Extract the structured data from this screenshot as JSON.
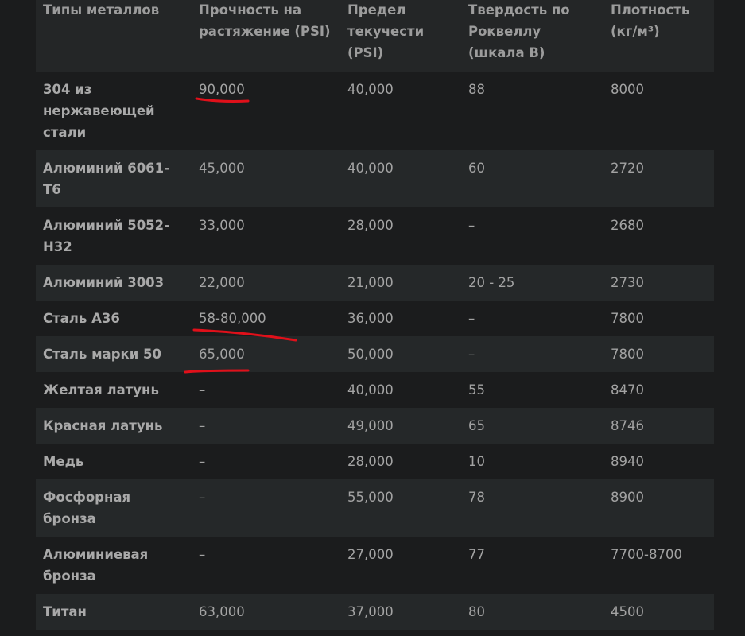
{
  "table": {
    "headers": [
      "Типы металлов",
      "Прочность на растяжение (PSI)",
      "Предел текучести (PSI)",
      "Твердость по Роквеллу (шкала B)",
      "Плотность (кг/м³)"
    ],
    "rows": [
      {
        "metal": "304 из нержавеющей стали",
        "tensile": "90,000",
        "yield": "40,000",
        "rockwell": "88",
        "density": "8000"
      },
      {
        "metal": "Алюминий 6061-T6",
        "tensile": "45,000",
        "yield": "40,000",
        "rockwell": "60",
        "density": "2720"
      },
      {
        "metal": "Алюминий 5052-H32",
        "tensile": "33,000",
        "yield": "28,000",
        "rockwell": "–",
        "density": "2680"
      },
      {
        "metal": "Алюминий 3003",
        "tensile": "22,000",
        "yield": "21,000",
        "rockwell": "20 - 25",
        "density": "2730"
      },
      {
        "metal": "Сталь A36",
        "tensile": "58-80,000",
        "yield": "36,000",
        "rockwell": "–",
        "density": "7800"
      },
      {
        "metal": "Сталь марки 50",
        "tensile": "65,000",
        "yield": "50,000",
        "rockwell": "–",
        "density": "7800"
      },
      {
        "metal": "Желтая латунь",
        "tensile": "–",
        "yield": "40,000",
        "rockwell": "55",
        "density": "8470"
      },
      {
        "metal": "Красная латунь",
        "tensile": "–",
        "yield": "49,000",
        "rockwell": "65",
        "density": "8746"
      },
      {
        "metal": "Медь",
        "tensile": "–",
        "yield": "28,000",
        "rockwell": "10",
        "density": "8940"
      },
      {
        "metal": "Фосфорная бронза",
        "tensile": "–",
        "yield": "55,000",
        "rockwell": "78",
        "density": "8900"
      },
      {
        "metal": "Алюминиевая бронза",
        "tensile": "–",
        "yield": "27,000",
        "rockwell": "77",
        "density": "7700-8700"
      },
      {
        "metal": "Титан",
        "tensile": "63,000",
        "yield": "37,000",
        "rockwell": "80",
        "density": "4500"
      }
    ]
  },
  "annotations": {
    "color": "#e0101a",
    "underlined_values": [
      "90,000",
      "58-80,000",
      "65,000"
    ]
  }
}
